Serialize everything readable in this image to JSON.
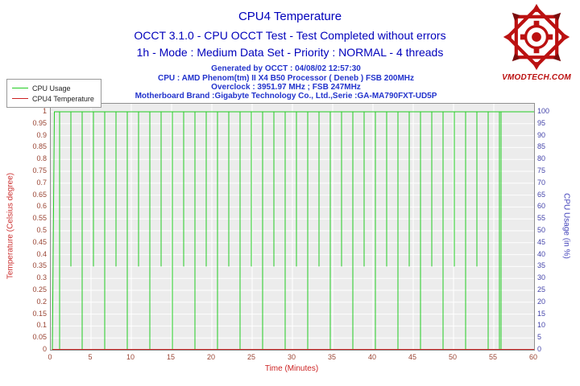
{
  "header": {
    "title": "CPU4 Temperature",
    "subtitle1": "OCCT 3.1.0 - CPU OCCT Test - Test Completed without errors",
    "subtitle2": "1h - Mode : Medium Data Set - Priority : NORMAL - 4 threads",
    "info1": "Generated by OCCT : 04/08/02 12:57:30",
    "info2": "CPU : AMD Phenom(tm) II X4 B50 Processor ( Deneb ) FSB 200MHz",
    "info3": "Overclock : 3951.97 MHz ; FSB 247MHz",
    "info4": "Motherboard Brand :Gigabyte Technology Co., Ltd.,Serie :GA-MA790FXT-UD5P"
  },
  "logo": {
    "text": "VMODTECH.COM",
    "color": "#bb1111"
  },
  "legend": {
    "items": [
      {
        "label": "CPU Usage",
        "color": "#22cc22"
      },
      {
        "label": "CPU4 Temperature",
        "color": "#cc2222"
      }
    ]
  },
  "chart_data": {
    "type": "line",
    "title": "CPU4 Temperature",
    "xlabel": "Time (Minutes)",
    "ylabel_left": "Temperature (Celsius degree)",
    "ylabel_right": "CPU Usage (in %)",
    "x_range": [
      0,
      60
    ],
    "y_left_range": [
      0,
      1
    ],
    "y_right_range": [
      0,
      100
    ],
    "grid": true,
    "legend_position": "top-left",
    "x_ticks": [
      0,
      5,
      10,
      15,
      20,
      25,
      30,
      35,
      40,
      45,
      50,
      55,
      60
    ],
    "y_left_ticks": [
      "1",
      "0.95",
      "0.9",
      "0.85",
      "0.8",
      "0.75",
      "0.7",
      "0.65",
      "0.6",
      "0.55",
      "0.5",
      "0.45",
      "0.4",
      "0.35",
      "0.3",
      "0.25",
      "0.2",
      "0.15",
      "0.1",
      "0.05",
      "0"
    ],
    "y_right_ticks": [
      "100",
      "95",
      "90",
      "85",
      "80",
      "75",
      "70",
      "65",
      "60",
      "55",
      "50",
      "45",
      "40",
      "35",
      "30",
      "25",
      "20",
      "15",
      "10",
      "5",
      "0"
    ],
    "colors": {
      "plot_bg": "#ececec",
      "grid": "#ffffff"
    },
    "series": [
      {
        "name": "CPU Usage",
        "axis": "right",
        "color": "#22cc22",
        "baseline": 100,
        "start": {
          "x": 0.2,
          "y": 0
        },
        "end_x": 60,
        "spikes": [
          {
            "x": 1.1,
            "low": 0
          },
          {
            "x": 2.5,
            "low": 35
          },
          {
            "x": 3.9,
            "low": 0
          },
          {
            "x": 5.3,
            "low": 35
          },
          {
            "x": 6.7,
            "low": 0
          },
          {
            "x": 8.1,
            "low": 35
          },
          {
            "x": 9.5,
            "low": 0
          },
          {
            "x": 10.9,
            "low": 35
          },
          {
            "x": 12.3,
            "low": 0
          },
          {
            "x": 13.7,
            "low": 35
          },
          {
            "x": 15.1,
            "low": 0
          },
          {
            "x": 16.5,
            "low": 35
          },
          {
            "x": 17.9,
            "low": 0
          },
          {
            "x": 19.3,
            "low": 35
          },
          {
            "x": 20.7,
            "low": 0
          },
          {
            "x": 22.1,
            "low": 35
          },
          {
            "x": 23.5,
            "low": 0
          },
          {
            "x": 24.9,
            "low": 35
          },
          {
            "x": 26.3,
            "low": 0
          },
          {
            "x": 27.7,
            "low": 35
          },
          {
            "x": 29.1,
            "low": 0
          },
          {
            "x": 30.5,
            "low": 35
          },
          {
            "x": 31.9,
            "low": 0
          },
          {
            "x": 33.3,
            "low": 35
          },
          {
            "x": 34.7,
            "low": 0
          },
          {
            "x": 36.1,
            "low": 35
          },
          {
            "x": 37.5,
            "low": 0
          },
          {
            "x": 38.9,
            "low": 35
          },
          {
            "x": 40.3,
            "low": 0
          },
          {
            "x": 41.7,
            "low": 35
          },
          {
            "x": 43.1,
            "low": 0
          },
          {
            "x": 44.5,
            "low": 35
          },
          {
            "x": 45.9,
            "low": 0
          },
          {
            "x": 47.3,
            "low": 35
          },
          {
            "x": 48.7,
            "low": 0
          },
          {
            "x": 50.1,
            "low": 35
          },
          {
            "x": 51.5,
            "low": 0
          },
          {
            "x": 52.9,
            "low": 35
          },
          {
            "x": 54.3,
            "low": 0
          },
          {
            "x": 55.7,
            "low": 0
          },
          {
            "x": 55.9,
            "low": 0
          }
        ]
      },
      {
        "name": "CPU4 Temperature",
        "axis": "left",
        "color": "#cc2222",
        "flat_value": 0,
        "x_start": 0.2,
        "x_end": 60
      }
    ]
  }
}
